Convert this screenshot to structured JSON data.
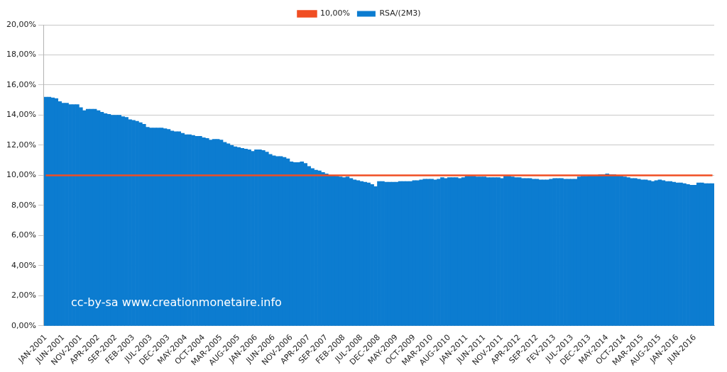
{
  "chart_data": {
    "type": "bar",
    "annotation": "cc-by-sa www.creationmonetaire.info",
    "categories": [
      "JAN-2001",
      null,
      null,
      null,
      null,
      "JUN-2001",
      null,
      null,
      null,
      null,
      "NOV-2001",
      null,
      null,
      null,
      null,
      "APR-2002",
      null,
      null,
      null,
      null,
      "SEP-2002",
      null,
      null,
      null,
      null,
      "FEB-2003",
      null,
      null,
      null,
      null,
      "JUL-2003",
      null,
      null,
      null,
      null,
      "DEC-2003",
      null,
      null,
      null,
      null,
      "MAY-2004",
      null,
      null,
      null,
      null,
      "OCT-2004",
      null,
      null,
      null,
      null,
      "MAR-2005",
      null,
      null,
      null,
      null,
      "AUG-2005",
      null,
      null,
      null,
      null,
      "JAN-2006",
      null,
      null,
      null,
      null,
      "JUN-2006",
      null,
      null,
      null,
      null,
      "NOV-2006",
      null,
      null,
      null,
      null,
      "APR-2007",
      null,
      null,
      null,
      null,
      "SEP-2007",
      null,
      null,
      null,
      null,
      "FEB-2008",
      null,
      null,
      null,
      null,
      "JUL-2008",
      null,
      null,
      null,
      null,
      "DEC-2008",
      null,
      null,
      null,
      null,
      "MAY-2009",
      null,
      null,
      null,
      null,
      "OCT-2009",
      null,
      null,
      null,
      null,
      "MAR-2010",
      null,
      null,
      null,
      null,
      "AUG-2010",
      null,
      null,
      null,
      null,
      "JAN-2011",
      null,
      null,
      null,
      null,
      "JUN-2011",
      null,
      null,
      null,
      null,
      "NOV-2011",
      null,
      null,
      null,
      null,
      "APR-2012",
      null,
      null,
      null,
      null,
      "SEP-2012",
      null,
      null,
      null,
      null,
      "FEV-2013",
      null,
      null,
      null,
      null,
      "JUL-2013",
      null,
      null,
      null,
      null,
      "DEC-2013",
      null,
      null,
      null,
      null,
      "MAY-2014",
      null,
      null,
      null,
      null,
      "OCT-2014",
      null,
      null,
      null,
      null,
      "MAR-2015",
      null,
      null,
      null,
      null,
      "AUG-2015",
      null,
      null,
      null,
      null,
      "JAN-2016",
      null,
      null,
      null,
      null,
      "JUN-2016",
      null,
      null,
      null,
      null,
      null
    ],
    "series": [
      {
        "name": "RSA/(2M3)",
        "type": "bar",
        "color": "#0c7cd0",
        "values": [
          15.2,
          15.2,
          15.15,
          15.1,
          14.9,
          14.8,
          14.8,
          14.7,
          14.7,
          14.7,
          14.5,
          14.3,
          14.4,
          14.4,
          14.4,
          14.3,
          14.2,
          14.1,
          14.05,
          14.0,
          14.0,
          14.0,
          13.9,
          13.85,
          13.7,
          13.65,
          13.6,
          13.5,
          13.4,
          13.2,
          13.15,
          13.15,
          13.15,
          13.15,
          13.1,
          13.05,
          12.95,
          12.9,
          12.9,
          12.8,
          12.7,
          12.7,
          12.65,
          12.6,
          12.6,
          12.5,
          12.45,
          12.35,
          12.4,
          12.4,
          12.35,
          12.2,
          12.1,
          12.0,
          11.9,
          11.85,
          11.8,
          11.75,
          11.7,
          11.6,
          11.7,
          11.7,
          11.65,
          11.55,
          11.4,
          11.3,
          11.25,
          11.25,
          11.2,
          11.1,
          10.9,
          10.85,
          10.85,
          10.9,
          10.8,
          10.6,
          10.45,
          10.35,
          10.3,
          10.2,
          10.1,
          10.0,
          10.0,
          9.95,
          9.9,
          9.85,
          9.9,
          9.8,
          9.7,
          9.65,
          9.6,
          9.55,
          9.5,
          9.4,
          9.25,
          9.6,
          9.6,
          9.55,
          9.55,
          9.55,
          9.55,
          9.6,
          9.6,
          9.6,
          9.6,
          9.65,
          9.65,
          9.7,
          9.75,
          9.75,
          9.75,
          9.7,
          9.75,
          9.85,
          9.8,
          9.85,
          9.85,
          9.85,
          9.8,
          9.85,
          9.95,
          9.95,
          9.95,
          9.9,
          9.9,
          9.9,
          9.85,
          9.85,
          9.85,
          9.85,
          9.8,
          9.95,
          9.95,
          9.9,
          9.85,
          9.85,
          9.8,
          9.8,
          9.8,
          9.75,
          9.75,
          9.7,
          9.7,
          9.7,
          9.75,
          9.8,
          9.8,
          9.8,
          9.75,
          9.75,
          9.75,
          9.75,
          9.9,
          9.95,
          9.95,
          10.0,
          10.0,
          10.0,
          10.05,
          10.05,
          10.1,
          10.05,
          10.05,
          10.0,
          9.95,
          9.9,
          9.85,
          9.8,
          9.8,
          9.75,
          9.7,
          9.7,
          9.65,
          9.6,
          9.65,
          9.7,
          9.65,
          9.6,
          9.6,
          9.55,
          9.5,
          9.5,
          9.45,
          9.4,
          9.35,
          9.35,
          9.5,
          9.5,
          9.45,
          9.45,
          9.45
        ]
      },
      {
        "name": "10,00%",
        "type": "line",
        "color": "#f04e23",
        "marker": "none",
        "line_style": "solid",
        "values": [
          10,
          10,
          10,
          10,
          10,
          10,
          10,
          10,
          10,
          10,
          10,
          10,
          10,
          10,
          10,
          10,
          10,
          10,
          10,
          10,
          10,
          10,
          10,
          10,
          10,
          10,
          10,
          10,
          10,
          10,
          10,
          10,
          10,
          10,
          10,
          10,
          10,
          10,
          10,
          10,
          10,
          10,
          10,
          10,
          10,
          10,
          10,
          10,
          10,
          10,
          10,
          10,
          10,
          10,
          10,
          10,
          10,
          10,
          10,
          10,
          10,
          10,
          10,
          10,
          10,
          10,
          10,
          10,
          10,
          10,
          10,
          10,
          10,
          10,
          10,
          10,
          10,
          10,
          10,
          10,
          10,
          10,
          10,
          10,
          10,
          10,
          10,
          10,
          10,
          10,
          10,
          10,
          10,
          10,
          10,
          10,
          10,
          10,
          10,
          10,
          10,
          10,
          10,
          10,
          10,
          10,
          10,
          10,
          10,
          10,
          10,
          10,
          10,
          10,
          10,
          10,
          10,
          10,
          10,
          10,
          10,
          10,
          10,
          10,
          10,
          10,
          10,
          10,
          10,
          10,
          10,
          10,
          10,
          10,
          10,
          10,
          10,
          10,
          10,
          10,
          10,
          10,
          10,
          10,
          10,
          10,
          10,
          10,
          10,
          10,
          10,
          10,
          10,
          10,
          10,
          10,
          10,
          10,
          10,
          10,
          10,
          10,
          10,
          10,
          10,
          10,
          10,
          10,
          10,
          10,
          10,
          10,
          10,
          10,
          10,
          10,
          10,
          10,
          10,
          10,
          10,
          10,
          10,
          10,
          10,
          10,
          10,
          10,
          10,
          10,
          10
        ]
      }
    ],
    "ylim": [
      0,
      20
    ],
    "yticks": [
      {
        "value": 0,
        "label": "0,00%"
      },
      {
        "value": 2,
        "label": "2,00%"
      },
      {
        "value": 4,
        "label": "4,00%"
      },
      {
        "value": 6,
        "label": "6,00%"
      },
      {
        "value": 8,
        "label": "8,00%"
      },
      {
        "value": 10,
        "label": "10,00%"
      },
      {
        "value": 12,
        "label": "12,00%"
      },
      {
        "value": 14,
        "label": "14,00%"
      },
      {
        "value": 16,
        "label": "16,00%"
      },
      {
        "value": 18,
        "label": "18,00%"
      },
      {
        "value": 20,
        "label": "20,00%"
      }
    ],
    "grid": true,
    "legend": "top"
  }
}
